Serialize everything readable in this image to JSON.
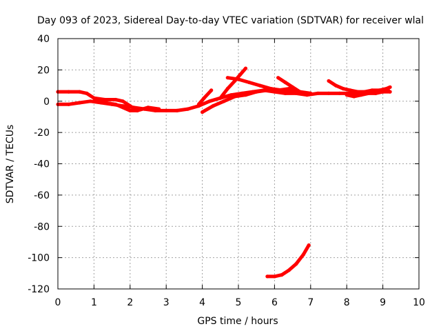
{
  "chart_data": {
    "type": "scatter",
    "title": "Day 093 of 2023, Sidereal Day-to-day VTEC variation (SDTVAR) for receiver wlal",
    "xlabel": "GPS time / hours",
    "ylabel": "SDTVAR / TECUs",
    "xlim": [
      0,
      10
    ],
    "ylim": [
      -120,
      40
    ],
    "xticks": [
      0,
      1,
      2,
      3,
      4,
      5,
      6,
      7,
      8,
      9,
      10
    ],
    "yticks": [
      -120,
      -100,
      -80,
      -60,
      -40,
      -20,
      0,
      20,
      40
    ],
    "grid": true,
    "legend": "none",
    "series_color": "#ff0000",
    "series": [
      {
        "points": [
          [
            0,
            -2
          ],
          [
            0.3,
            -2
          ],
          [
            0.6,
            -1
          ],
          [
            0.9,
            0
          ],
          [
            1.2,
            -1
          ],
          [
            1.5,
            -2
          ],
          [
            1.8,
            -3
          ],
          [
            2.1,
            -4
          ],
          [
            2.4,
            -5
          ],
          [
            2.7,
            -6
          ],
          [
            3.0,
            -6
          ],
          [
            3.3,
            -6
          ],
          [
            3.6,
            -5
          ],
          [
            3.9,
            -3
          ],
          [
            4.2,
            0
          ],
          [
            4.5,
            2
          ],
          [
            4.8,
            4
          ],
          [
            5.1,
            5
          ],
          [
            5.4,
            6
          ],
          [
            5.7,
            7
          ],
          [
            6.0,
            6
          ],
          [
            6.3,
            5
          ],
          [
            6.6,
            5
          ],
          [
            6.9,
            4
          ],
          [
            7.2,
            5
          ],
          [
            7.5,
            5
          ],
          [
            7.8,
            5
          ],
          [
            8.1,
            5
          ],
          [
            8.4,
            5
          ],
          [
            8.7,
            6
          ],
          [
            9.0,
            6
          ],
          [
            9.15,
            7
          ]
        ]
      },
      {
        "points": [
          [
            0,
            6
          ],
          [
            0.3,
            6
          ],
          [
            0.6,
            6
          ],
          [
            0.8,
            5
          ],
          [
            1.0,
            2
          ],
          [
            1.3,
            1
          ],
          [
            1.6,
            1
          ],
          [
            1.8,
            0
          ],
          [
            2.0,
            -3
          ],
          [
            2.2,
            -6
          ],
          [
            2.5,
            -4
          ],
          [
            2.8,
            -5
          ]
        ]
      },
      {
        "points": [
          [
            1.0,
            0
          ],
          [
            1.3,
            -1
          ],
          [
            1.6,
            -2
          ],
          [
            2.0,
            -6
          ],
          [
            2.2,
            -6
          ]
        ]
      },
      {
        "points": [
          [
            4.0,
            -7
          ],
          [
            4.3,
            -3
          ],
          [
            4.6,
            0
          ],
          [
            4.9,
            3
          ],
          [
            5.2,
            4
          ],
          [
            5.5,
            6
          ],
          [
            5.8,
            7
          ],
          [
            6.1,
            7
          ],
          [
            6.4,
            8
          ],
          [
            6.7,
            6
          ],
          [
            7.0,
            5
          ]
        ]
      },
      {
        "points": [
          [
            3.9,
            -2
          ],
          [
            4.05,
            2
          ],
          [
            4.25,
            7
          ]
        ]
      },
      {
        "points": [
          [
            4.5,
            2
          ],
          [
            4.7,
            8
          ],
          [
            4.9,
            13
          ],
          [
            5.05,
            17
          ],
          [
            5.2,
            21
          ]
        ]
      },
      {
        "points": [
          [
            4.7,
            15
          ],
          [
            5.0,
            14
          ],
          [
            5.3,
            12
          ],
          [
            5.6,
            10
          ],
          [
            5.9,
            8
          ],
          [
            6.2,
            7
          ],
          [
            6.5,
            6
          ],
          [
            6.8,
            5
          ]
        ]
      },
      {
        "points": [
          [
            6.1,
            15
          ],
          [
            6.3,
            12
          ],
          [
            6.5,
            9
          ],
          [
            6.7,
            6
          ],
          [
            6.85,
            5
          ]
        ]
      },
      {
        "points": [
          [
            7.5,
            13
          ],
          [
            7.7,
            10
          ],
          [
            7.9,
            8
          ],
          [
            8.1,
            7
          ],
          [
            8.3,
            6
          ],
          [
            8.5,
            6
          ],
          [
            8.7,
            7
          ],
          [
            8.9,
            7
          ],
          [
            9.1,
            8
          ],
          [
            9.2,
            9
          ]
        ]
      },
      {
        "points": [
          [
            8.0,
            4
          ],
          [
            8.2,
            3
          ],
          [
            8.4,
            4
          ],
          [
            8.6,
            5
          ],
          [
            8.8,
            5
          ],
          [
            9.0,
            6
          ],
          [
            9.2,
            6
          ]
        ]
      },
      {
        "points": [
          [
            5.8,
            -112
          ],
          [
            6.0,
            -112
          ],
          [
            6.2,
            -111
          ],
          [
            6.4,
            -108
          ],
          [
            6.6,
            -104
          ],
          [
            6.8,
            -98
          ],
          [
            6.95,
            -92
          ]
        ]
      }
    ]
  }
}
